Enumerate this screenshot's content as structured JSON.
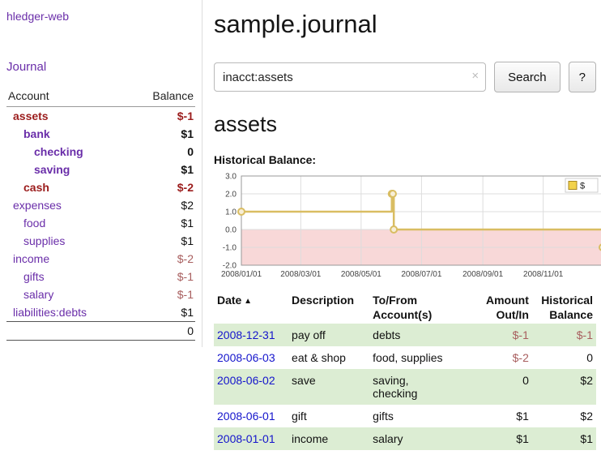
{
  "colors": {
    "link_purple": "#6a2ea9",
    "date_link_blue": "#1414cc",
    "negative_strong_red": "#9b1c1c",
    "negative_soft_red": "#a85e5e",
    "row_stripe_green": "#dcedd3",
    "chart_line_gold": "#d9bd62",
    "chart_negative_pink": "#f8d8d8"
  },
  "app": {
    "title": "hledger-web"
  },
  "sidebar": {
    "journal_label": "Journal",
    "headers": {
      "account": "Account",
      "balance": "Balance"
    },
    "accounts": [
      {
        "account": "assets",
        "balance": "$-1",
        "depth": 1,
        "bold": true,
        "account_negative": true,
        "balance_negative": "strong"
      },
      {
        "account": "bank",
        "balance": "$1",
        "depth": 2,
        "bold": true,
        "account_negative": false,
        "balance_negative": "none"
      },
      {
        "account": "checking",
        "balance": "0",
        "depth": 3,
        "bold": true,
        "account_negative": false,
        "balance_negative": "none"
      },
      {
        "account": "saving",
        "balance": "$1",
        "depth": 3,
        "bold": true,
        "account_negative": false,
        "balance_negative": "none"
      },
      {
        "account": "cash",
        "balance": "$-2",
        "depth": 2,
        "bold": true,
        "account_negative": true,
        "balance_negative": "strong"
      },
      {
        "account": "expenses",
        "balance": "$2",
        "depth": 1,
        "bold": false,
        "account_negative": false,
        "balance_negative": "none"
      },
      {
        "account": "food",
        "balance": "$1",
        "depth": 2,
        "bold": false,
        "account_negative": false,
        "balance_negative": "none"
      },
      {
        "account": "supplies",
        "balance": "$1",
        "depth": 2,
        "bold": false,
        "account_negative": false,
        "balance_negative": "none"
      },
      {
        "account": "income",
        "balance": "$-2",
        "depth": 1,
        "bold": false,
        "account_negative": false,
        "balance_negative": "soft"
      },
      {
        "account": "gifts",
        "balance": "$-1",
        "depth": 2,
        "bold": false,
        "account_negative": false,
        "balance_negative": "soft"
      },
      {
        "account": "salary",
        "balance": "$-1",
        "depth": 2,
        "bold": false,
        "account_negative": false,
        "balance_negative": "soft"
      },
      {
        "account": "liabilities:debts",
        "balance": "$1",
        "depth": 1,
        "bold": false,
        "account_negative": false,
        "balance_negative": "none"
      }
    ],
    "total": "0"
  },
  "main": {
    "title": "sample.journal",
    "search": {
      "value": "inacct:assets",
      "clear_icon": "×",
      "button_label": "Search",
      "help_label": "?"
    },
    "account_heading": "assets",
    "chart_label": "Historical Balance:"
  },
  "chart_data": {
    "type": "line",
    "step": true,
    "title": "Historical Balance",
    "xlabel": "",
    "ylabel": "",
    "ylim": [
      -2,
      3
    ],
    "xlim_days": [
      0,
      365
    ],
    "grid": true,
    "yticks": [
      {
        "v": 3,
        "label": "3.0"
      },
      {
        "v": 2,
        "label": "2.0"
      },
      {
        "v": 1,
        "label": "1.0"
      },
      {
        "v": 0,
        "label": "0.0"
      },
      {
        "v": -1,
        "label": "-1.0"
      },
      {
        "v": -2,
        "label": "-2.0"
      }
    ],
    "xticks": [
      {
        "v": 0,
        "label": "2008/01/01"
      },
      {
        "v": 60,
        "label": "2008/03/01"
      },
      {
        "v": 121,
        "label": "2008/05/01"
      },
      {
        "v": 182,
        "label": "2008/07/01"
      },
      {
        "v": 244,
        "label": "2008/09/01"
      },
      {
        "v": 305,
        "label": "2008/11/01"
      }
    ],
    "series": [
      {
        "name": "$",
        "x_dates": [
          "2008-01-01",
          "2008-06-01",
          "2008-06-02",
          "2008-06-03",
          "2008-12-31"
        ],
        "x_days": [
          0,
          152,
          153,
          154,
          365
        ],
        "values": [
          1,
          2,
          2,
          0,
          -1
        ]
      }
    ],
    "legend": {
      "label": "$",
      "position": "top-right"
    },
    "colors": {
      "line": "#d9bd62",
      "marker_fill": "#f7eed6",
      "negative_area": "#f8d8d8",
      "grid": "#dddddd",
      "border": "#999999",
      "legend_swatch": "#f2d24b",
      "legend_border": "#a8871f"
    }
  },
  "register": {
    "headers": [
      {
        "lines": [
          "Date"
        ],
        "align": "left",
        "sortable": true,
        "sort_icon": "▲"
      },
      {
        "lines": [
          "Description"
        ],
        "align": "left",
        "sortable": false
      },
      {
        "lines": [
          "To/From",
          "Account(s)"
        ],
        "align": "left",
        "sortable": false
      },
      {
        "lines": [
          "Amount",
          "Out/In"
        ],
        "align": "right",
        "sortable": false
      },
      {
        "lines": [
          "Historical",
          "Balance"
        ],
        "align": "right",
        "sortable": false
      }
    ],
    "rows": [
      {
        "date": "2008-12-31",
        "description": "pay off",
        "accounts": "debts",
        "amount": "$-1",
        "amount_negative": true,
        "balance": "$-1",
        "balance_negative": true
      },
      {
        "date": "2008-06-03",
        "description": "eat & shop",
        "accounts": "food, supplies",
        "amount": "$-2",
        "amount_negative": true,
        "balance": "0",
        "balance_negative": false
      },
      {
        "date": "2008-06-02",
        "description": "save",
        "accounts": "saving,\nchecking",
        "amount": "0",
        "amount_negative": false,
        "balance": "$2",
        "balance_negative": false
      },
      {
        "date": "2008-06-01",
        "description": "gift",
        "accounts": "gifts",
        "amount": "$1",
        "amount_negative": false,
        "balance": "$2",
        "balance_negative": false
      },
      {
        "date": "2008-01-01",
        "description": "income",
        "accounts": "salary",
        "amount": "$1",
        "amount_negative": false,
        "balance": "$1",
        "balance_negative": false
      }
    ]
  }
}
